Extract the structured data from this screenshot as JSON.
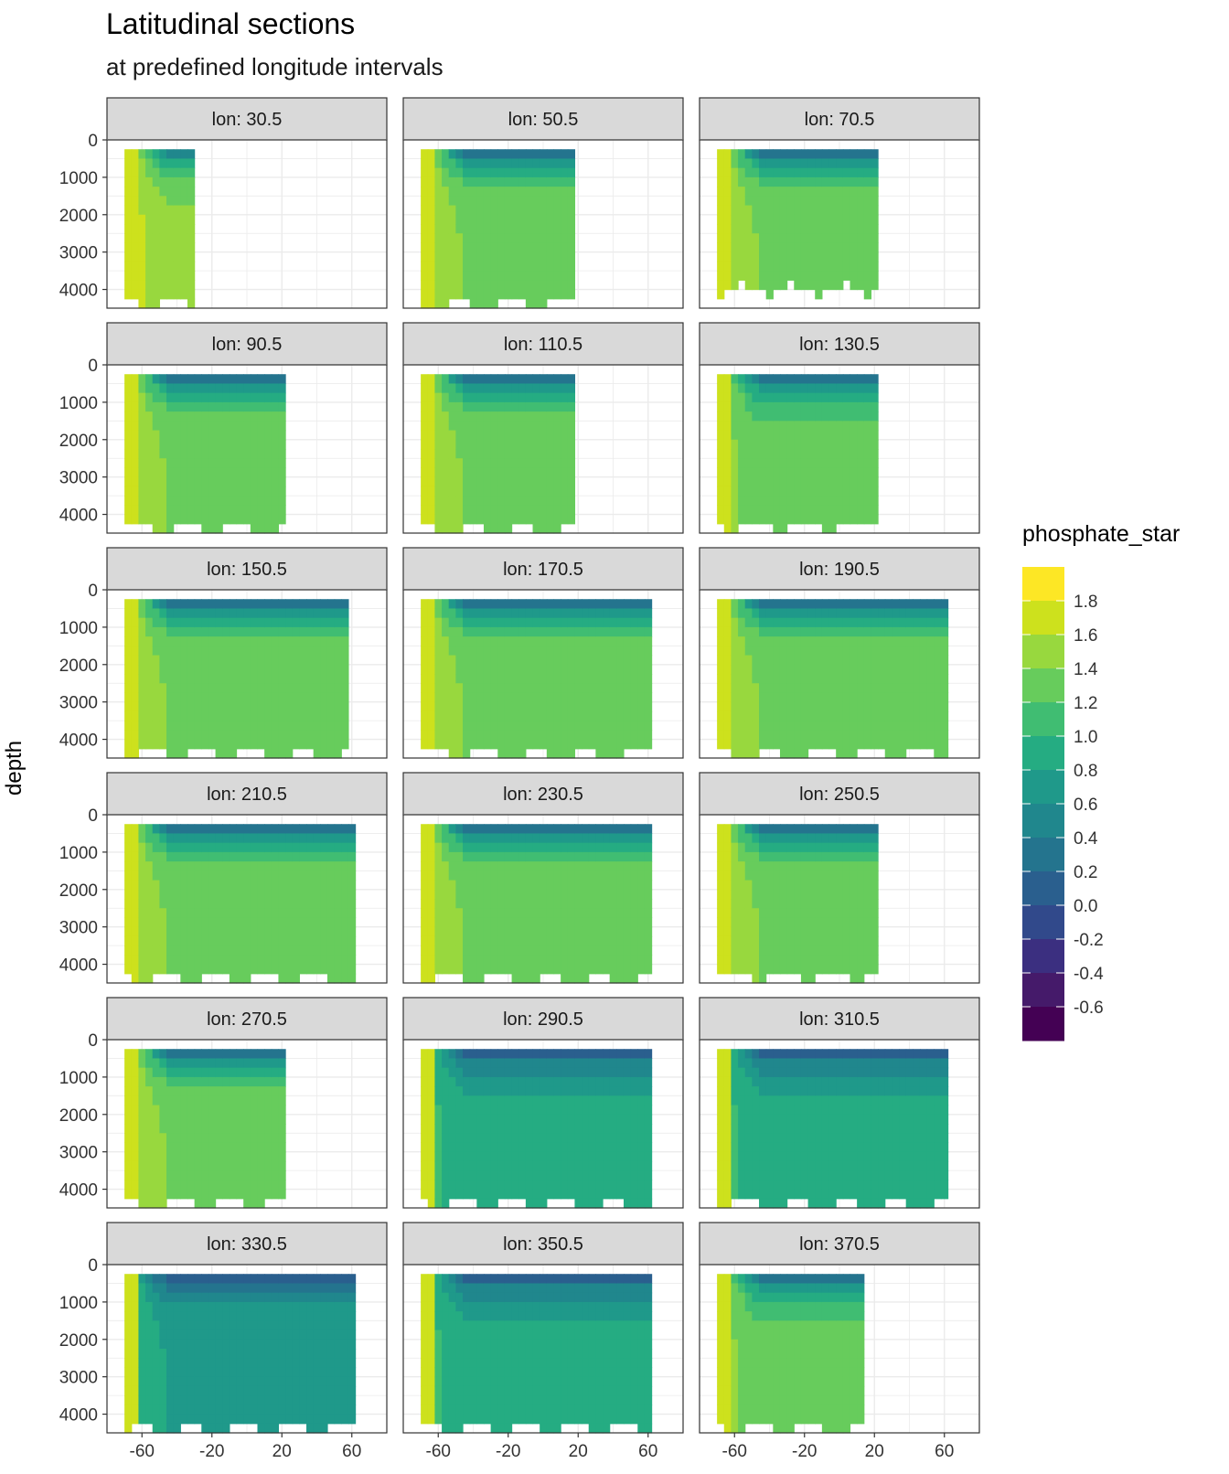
{
  "chart_data": {
    "type": "heatmap",
    "title": "Latitudinal sections",
    "subtitle": "at predefined longitude intervals",
    "xlabel": "",
    "ylabel": "depth",
    "x_ticks": [
      -60,
      -20,
      20,
      60
    ],
    "x_tick_labels": [
      "-60",
      "-20",
      "20",
      "60"
    ],
    "xlim": [
      -80,
      80
    ],
    "y_ticks": [
      0,
      1000,
      2000,
      3000,
      4000
    ],
    "y_tick_labels": [
      "0",
      "1000",
      "2000",
      "3000",
      "4000"
    ],
    "ylim": [
      4500,
      0
    ],
    "y_reversed": true,
    "grid": true,
    "legend": {
      "title": "phosphate_star",
      "placement": "right",
      "labels": [
        "1.8",
        "1.6",
        "1.4",
        "1.2",
        "1.0",
        "0.8",
        "0.6",
        "0.4",
        "0.2",
        "0.0",
        "-0.2",
        "-0.4",
        "-0.6"
      ],
      "colors": [
        "#fde725",
        "#cde11d",
        "#98d83e",
        "#67cc5c",
        "#40bd72",
        "#25ac82",
        "#1f998a",
        "#20878d",
        "#24748e",
        "#2a5f8e",
        "#31498b",
        "#3b2f80",
        "#451a6a",
        "#440154"
      ]
    },
    "panels": [
      {
        "label": "lon: 30.5",
        "lat_range": [
          -70,
          -33
        ],
        "max_depth": 4500,
        "deep_value": 1.5
      },
      {
        "label": "lon: 50.5",
        "lat_range": [
          -70,
          18
        ],
        "max_depth": 4500,
        "deep_value": 1.4
      },
      {
        "label": "lon: 70.5",
        "lat_range": [
          -70,
          20
        ],
        "max_depth": 4100,
        "deep_value": 1.4
      },
      {
        "label": "lon: 90.5",
        "lat_range": [
          -70,
          20
        ],
        "max_depth": 4500,
        "deep_value": 1.4
      },
      {
        "label": "lon: 110.5",
        "lat_range": [
          -70,
          18
        ],
        "max_depth": 4500,
        "deep_value": 1.4
      },
      {
        "label": "lon: 130.5",
        "lat_range": [
          -70,
          20
        ],
        "max_depth": 4400,
        "deep_value": 1.3
      },
      {
        "label": "lon: 150.5",
        "lat_range": [
          -70,
          57
        ],
        "max_depth": 4500,
        "deep_value": 1.4
      },
      {
        "label": "lon: 170.5",
        "lat_range": [
          -70,
          59
        ],
        "max_depth": 4500,
        "deep_value": 1.4
      },
      {
        "label": "lon: 190.5",
        "lat_range": [
          -70,
          60
        ],
        "max_depth": 4500,
        "deep_value": 1.4
      },
      {
        "label": "lon: 210.5",
        "lat_range": [
          -70,
          59
        ],
        "max_depth": 4500,
        "deep_value": 1.4
      },
      {
        "label": "lon: 230.5",
        "lat_range": [
          -70,
          59
        ],
        "max_depth": 4500,
        "deep_value": 1.4
      },
      {
        "label": "lon: 250.5",
        "lat_range": [
          -70,
          20
        ],
        "max_depth": 4400,
        "deep_value": 1.4
      },
      {
        "label": "lon: 270.5",
        "lat_range": [
          -70,
          20
        ],
        "max_depth": 4500,
        "deep_value": 1.4
      },
      {
        "label": "lon: 290.5",
        "lat_range": [
          -70,
          60
        ],
        "max_depth": 4500,
        "deep_value": 0.9
      },
      {
        "label": "lon: 310.5",
        "lat_range": [
          -70,
          60
        ],
        "max_depth": 4500,
        "deep_value": 0.9
      },
      {
        "label": "lon: 330.5",
        "lat_range": [
          -70,
          62
        ],
        "max_depth": 4500,
        "deep_value": 0.8
      },
      {
        "label": "lon: 350.5",
        "lat_range": [
          -70,
          60
        ],
        "max_depth": 4500,
        "deep_value": 0.9
      },
      {
        "label": "lon: 370.5",
        "lat_range": [
          -70,
          11
        ],
        "max_depth": 4500,
        "deep_value": 1.3
      }
    ]
  }
}
